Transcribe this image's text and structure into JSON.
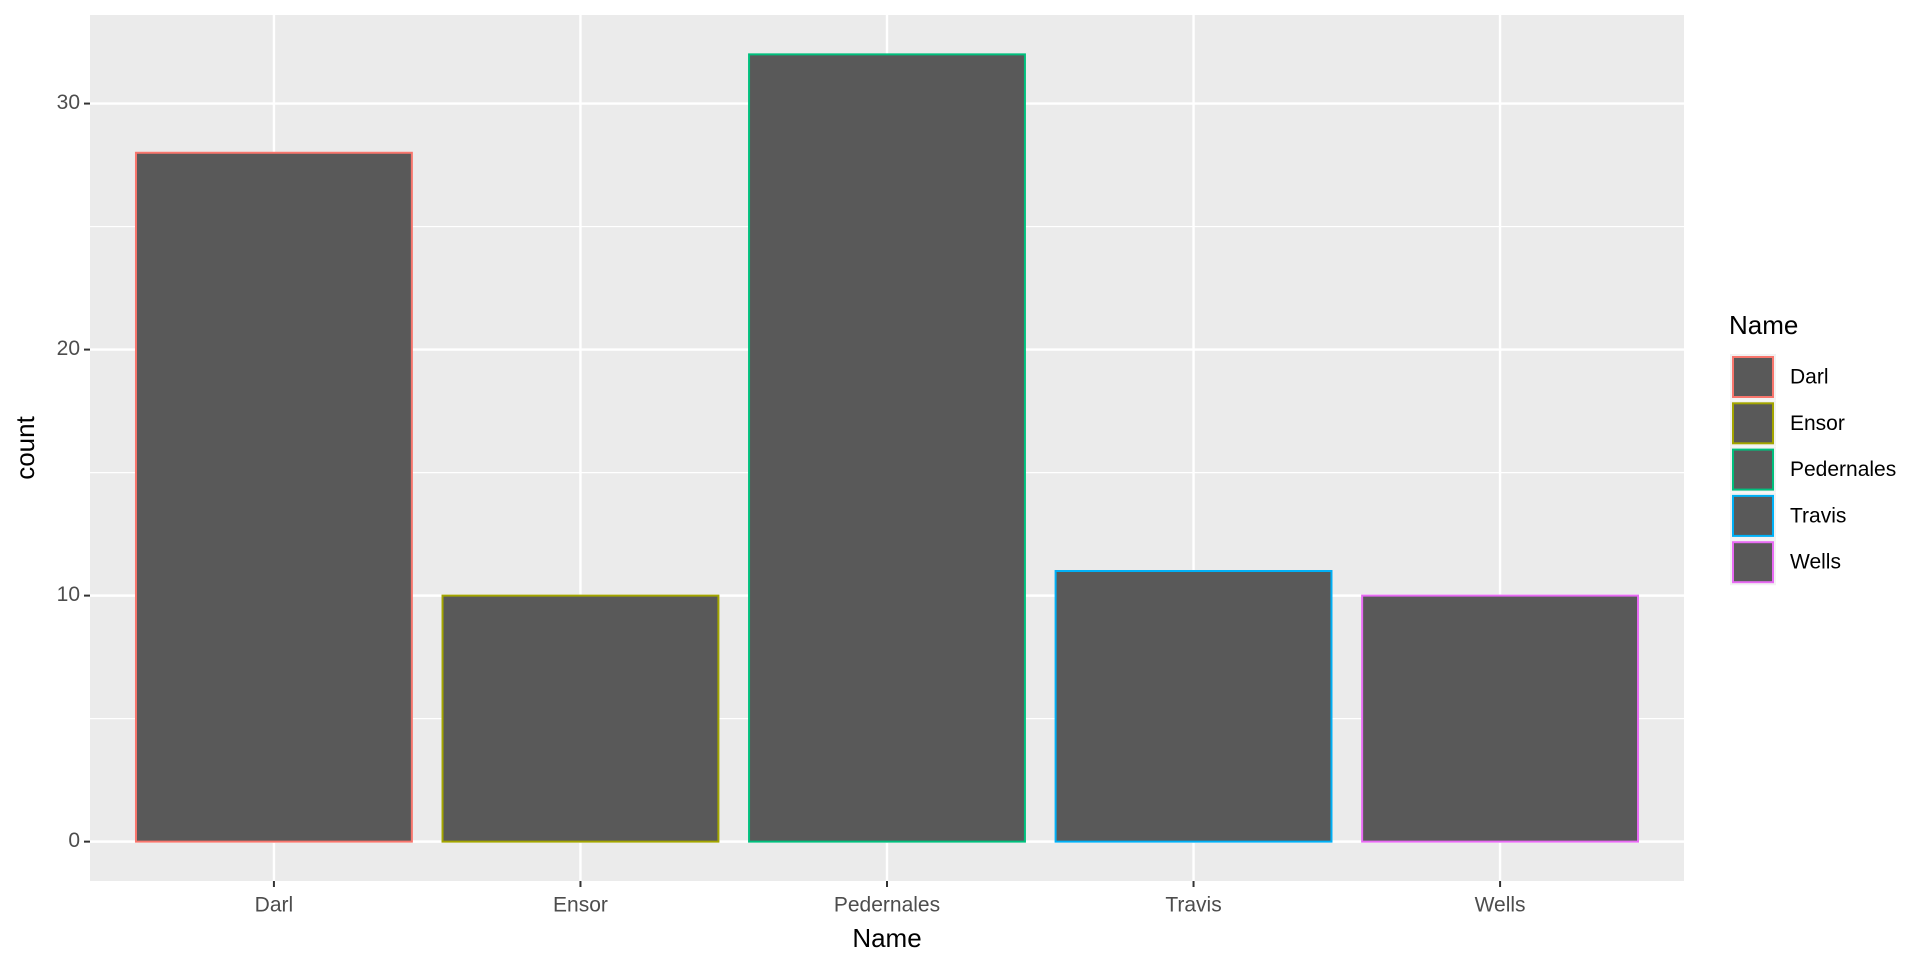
{
  "chart_data": {
    "type": "bar",
    "x_label": "Name",
    "y_label": "count",
    "legend_title": "Name",
    "categories": [
      "Darl",
      "Ensor",
      "Pedernales",
      "Travis",
      "Wells"
    ],
    "values": [
      28,
      10,
      32,
      11,
      10
    ],
    "colors": [
      "#F8766D",
      "#A3A500",
      "#00BF7D",
      "#00B0F6",
      "#E76BF3"
    ],
    "fill": "#595959",
    "ylim": [
      -1.6,
      33.6
    ],
    "yticks": [
      0,
      10,
      20,
      30
    ],
    "grid": true,
    "legend": "right"
  }
}
